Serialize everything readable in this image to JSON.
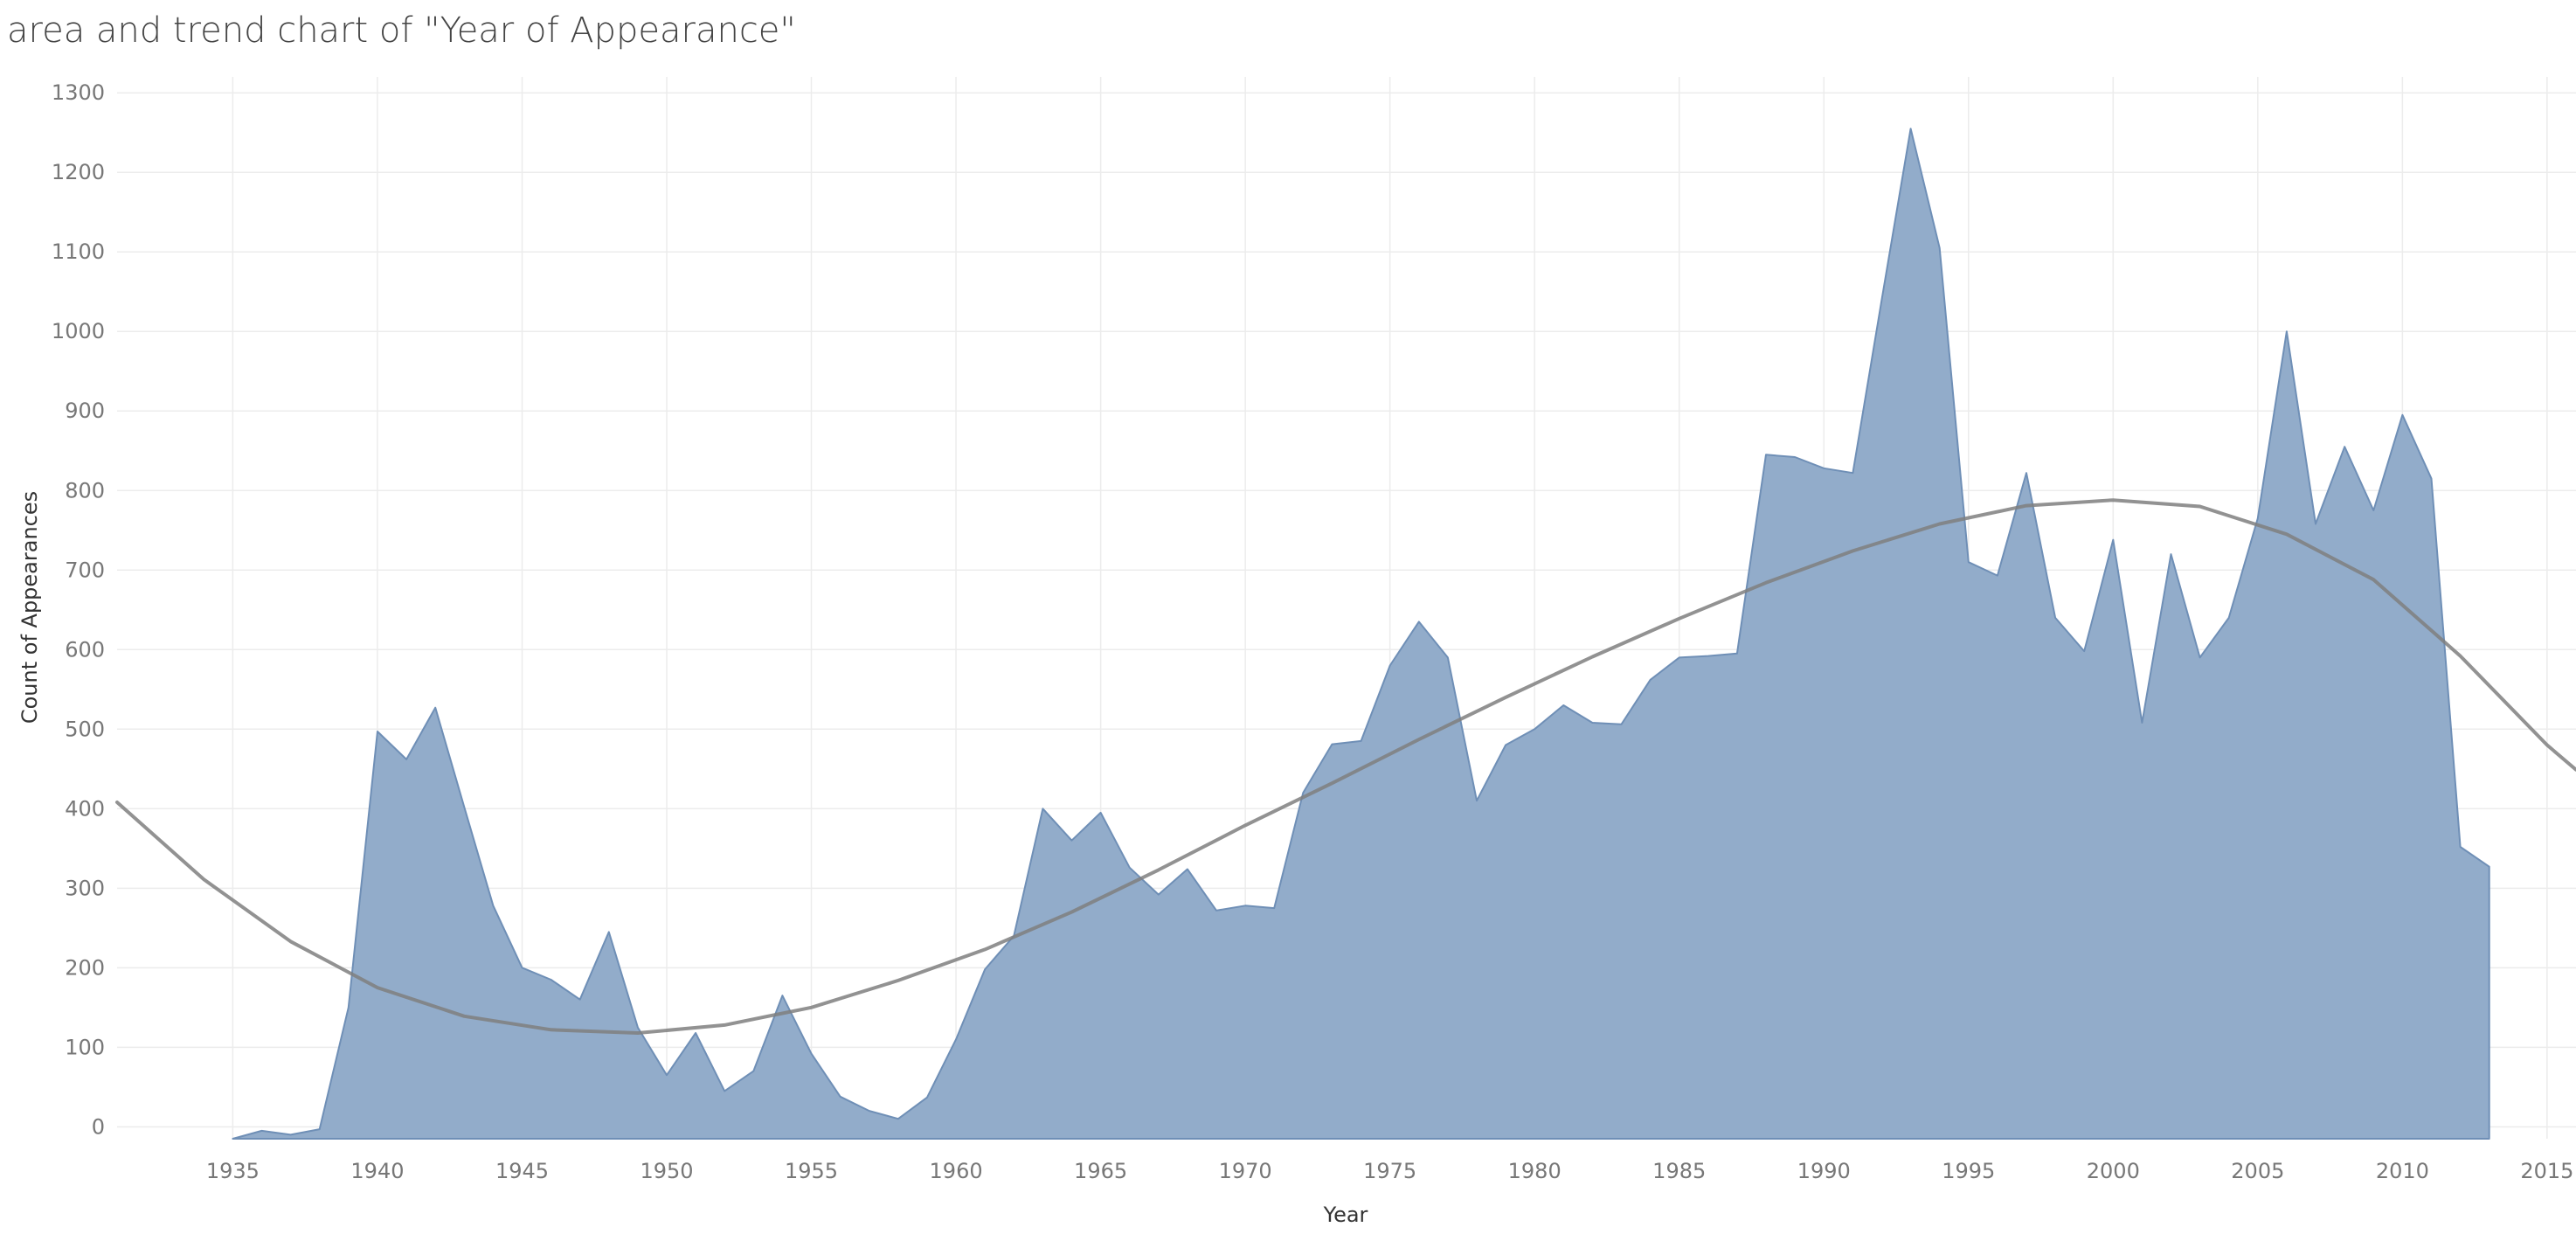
{
  "chart_data": {
    "type": "area",
    "title": "area and trend chart of \"Year of Appearance\"",
    "xlabel": "Year",
    "ylabel": "Count of Appearances",
    "xlim": [
      1931,
      2016
    ],
    "ylim": [
      -15,
      1320
    ],
    "x_ticks": [
      1935,
      1940,
      1945,
      1950,
      1955,
      1960,
      1965,
      1970,
      1975,
      1980,
      1985,
      1990,
      1995,
      2000,
      2005,
      2010,
      2015
    ],
    "y_ticks": [
      0,
      100,
      200,
      300,
      400,
      500,
      600,
      700,
      800,
      900,
      1000,
      1100,
      1200,
      1300
    ],
    "grid": true,
    "colors": {
      "area": "#8ea9c8",
      "area_edge": "#6f8fb6",
      "trend": "#7f7f7f",
      "grid": "#ececec"
    },
    "series": [
      {
        "kind": "area",
        "x": [
          1935,
          1936,
          1937,
          1938,
          1939,
          1940,
          1941,
          1942,
          1943,
          1944,
          1945,
          1946,
          1947,
          1948,
          1949,
          1950,
          1951,
          1952,
          1953,
          1954,
          1955,
          1956,
          1957,
          1958,
          1959,
          1960,
          1961,
          1962,
          1963,
          1964,
          1965,
          1966,
          1967,
          1968,
          1969,
          1970,
          1971,
          1972,
          1973,
          1974,
          1975,
          1976,
          1977,
          1978,
          1979,
          1980,
          1981,
          1982,
          1983,
          1984,
          1985,
          1986,
          1987,
          1988,
          1989,
          1990,
          1991,
          1992,
          1993,
          1994,
          1995,
          1996,
          1997,
          1998,
          1999,
          2000,
          2001,
          2002,
          2003,
          2004,
          2005,
          2006,
          2007,
          2008,
          2009,
          2010,
          2011,
          2012,
          2013
        ],
        "values": [
          -15,
          -5,
          -10,
          -3,
          150,
          497,
          462,
          527,
          402,
          278,
          200,
          185,
          160,
          245,
          125,
          65,
          118,
          45,
          70,
          165,
          92,
          38,
          20,
          10,
          37,
          110,
          198,
          240,
          400,
          360,
          395,
          326,
          292,
          324,
          272,
          278,
          275,
          420,
          481,
          485,
          580,
          635,
          590,
          410,
          480,
          500,
          530,
          508,
          506,
          562,
          590,
          592,
          595,
          845,
          842,
          828,
          822,
          1040,
          1255,
          1105,
          710,
          693,
          822,
          640,
          598,
          738,
          508,
          720,
          590,
          640,
          765,
          1000,
          758,
          855,
          775,
          895,
          815,
          352,
          327
        ]
      },
      {
        "kind": "trend",
        "x": [
          1931,
          1934,
          1937,
          1940,
          1943,
          1946,
          1949,
          1952,
          1955,
          1958,
          1961,
          1964,
          1967,
          1970,
          1973,
          1976,
          1979,
          1982,
          1985,
          1988,
          1991,
          1994,
          1997,
          2000,
          2003,
          2006,
          2009,
          2012,
          2015,
          2016
        ],
        "values": [
          408,
          311,
          233,
          175,
          139,
          122,
          118,
          128,
          150,
          184,
          223,
          270,
          323,
          379,
          432,
          487,
          540,
          591,
          639,
          684,
          724,
          758,
          781,
          788,
          780,
          745,
          688,
          592,
          480,
          449
        ]
      }
    ]
  }
}
